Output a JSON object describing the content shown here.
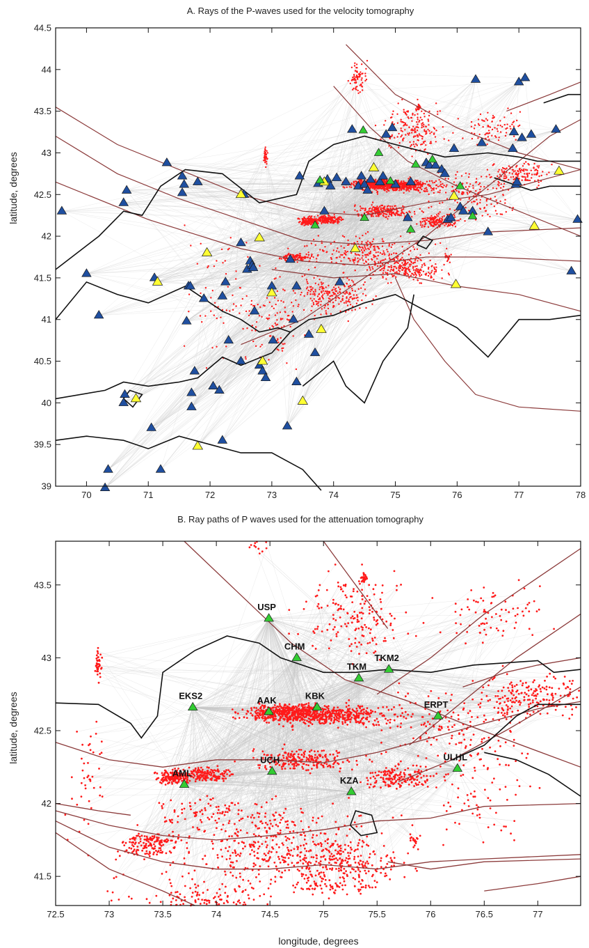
{
  "figure": {
    "panels": [
      {
        "id": "A",
        "title": "A. Rays of the P-waves used for the velocity tomography",
        "xlim": [
          69.5,
          78
        ],
        "ylim": [
          39,
          44.5
        ],
        "x_ticks": [
          "70",
          "71",
          "72",
          "73",
          "74",
          "75",
          "76",
          "77",
          "78"
        ],
        "y_ticks": [
          "39",
          "39.5",
          "40",
          "40.5",
          "41",
          "41.5",
          "42",
          "42.5",
          "43",
          "43.5",
          "44",
          "44.5"
        ],
        "ylabel": "latitude, degrees",
        "stations_blue": [
          [
            69.6,
            42.3
          ],
          [
            70.0,
            41.55
          ],
          [
            70.2,
            41.05
          ],
          [
            70.6,
            42.4
          ],
          [
            70.65,
            42.55
          ],
          [
            70.6,
            40.0
          ],
          [
            70.62,
            40.1
          ],
          [
            71.05,
            39.7
          ],
          [
            71.1,
            41.5
          ],
          [
            71.3,
            42.88
          ],
          [
            71.55,
            42.72
          ],
          [
            71.55,
            42.52
          ],
          [
            71.58,
            42.62
          ],
          [
            71.65,
            41.4
          ],
          [
            71.68,
            41.4
          ],
          [
            71.62,
            40.98
          ],
          [
            71.7,
            40.12
          ],
          [
            71.75,
            40.38
          ],
          [
            71.7,
            39.95
          ],
          [
            71.8,
            42.65
          ],
          [
            71.9,
            41.25
          ],
          [
            72.05,
            40.2
          ],
          [
            72.2,
            39.55
          ],
          [
            72.15,
            40.15
          ],
          [
            72.2,
            41.28
          ],
          [
            72.25,
            41.45
          ],
          [
            72.3,
            40.75
          ],
          [
            72.5,
            41.92
          ],
          [
            72.5,
            40.5
          ],
          [
            72.55,
            42.5
          ],
          [
            72.6,
            41.6
          ],
          [
            72.65,
            41.7
          ],
          [
            72.68,
            41.65
          ],
          [
            72.7,
            41.62
          ],
          [
            72.72,
            41.1
          ],
          [
            72.8,
            40.45
          ],
          [
            72.85,
            40.38
          ],
          [
            72.9,
            40.3
          ],
          [
            73.0,
            41.4
          ],
          [
            73.02,
            40.75
          ],
          [
            73.25,
            39.72
          ],
          [
            73.3,
            41.72
          ],
          [
            73.35,
            41.0
          ],
          [
            73.4,
            40.25
          ],
          [
            73.4,
            41.4
          ],
          [
            73.45,
            42.72
          ],
          [
            73.6,
            40.82
          ],
          [
            73.7,
            40.6
          ],
          [
            73.75,
            42.63
          ],
          [
            73.85,
            42.3
          ],
          [
            73.9,
            42.68
          ],
          [
            73.95,
            42.6
          ],
          [
            74.05,
            42.7
          ],
          [
            74.1,
            41.45
          ],
          [
            74.2,
            42.65
          ],
          [
            74.3,
            43.28
          ],
          [
            74.4,
            42.6
          ],
          [
            74.45,
            42.72
          ],
          [
            74.5,
            42.62
          ],
          [
            74.55,
            42.55
          ],
          [
            74.6,
            42.68
          ],
          [
            74.75,
            42.65
          ],
          [
            74.8,
            42.72
          ],
          [
            74.85,
            43.22
          ],
          [
            74.95,
            43.3
          ],
          [
            75.0,
            42.62
          ],
          [
            75.2,
            42.22
          ],
          [
            75.25,
            42.65
          ],
          [
            75.5,
            42.88
          ],
          [
            75.55,
            42.85
          ],
          [
            75.65,
            42.85
          ],
          [
            75.75,
            42.8
          ],
          [
            75.8,
            42.75
          ],
          [
            75.85,
            42.2
          ],
          [
            75.9,
            42.22
          ],
          [
            75.95,
            43.05
          ],
          [
            76.05,
            42.35
          ],
          [
            76.1,
            42.3
          ],
          [
            76.25,
            42.3
          ],
          [
            76.3,
            43.88
          ],
          [
            76.4,
            43.12
          ],
          [
            76.5,
            42.05
          ],
          [
            76.9,
            43.05
          ],
          [
            76.92,
            43.25
          ],
          [
            76.95,
            42.62
          ],
          [
            76.97,
            42.65
          ],
          [
            77.0,
            43.85
          ],
          [
            77.05,
            43.18
          ],
          [
            77.1,
            43.9
          ],
          [
            77.2,
            43.22
          ],
          [
            77.6,
            43.28
          ],
          [
            77.85,
            41.58
          ],
          [
            77.95,
            42.2
          ],
          [
            70.35,
            39.2
          ],
          [
            70.3,
            38.98
          ],
          [
            71.2,
            39.2
          ]
        ],
        "stations_yellow": [
          [
            70.8,
            40.05
          ],
          [
            71.15,
            41.45
          ],
          [
            71.8,
            39.48
          ],
          [
            71.95,
            41.8
          ],
          [
            72.5,
            42.5
          ],
          [
            72.8,
            41.98
          ],
          [
            72.85,
            40.5
          ],
          [
            73.0,
            41.32
          ],
          [
            73.5,
            40.02
          ],
          [
            73.8,
            40.88
          ],
          [
            73.85,
            42.65
          ],
          [
            74.35,
            41.85
          ],
          [
            74.65,
            42.82
          ],
          [
            75.95,
            42.48
          ],
          [
            75.98,
            41.42
          ],
          [
            77.25,
            42.12
          ],
          [
            77.65,
            42.78
          ]
        ],
        "stations_green": [
          [
            73.7,
            42.13
          ],
          [
            73.78,
            42.67
          ],
          [
            74.48,
            43.27
          ],
          [
            74.5,
            42.22
          ],
          [
            74.73,
            43.0
          ],
          [
            74.92,
            42.66
          ],
          [
            75.25,
            42.08
          ],
          [
            75.33,
            42.86
          ],
          [
            75.6,
            42.92
          ],
          [
            76.05,
            42.6
          ],
          [
            76.25,
            42.24
          ]
        ]
      },
      {
        "id": "B",
        "title": "B. Ray paths of P waves used for the attenuation tomography",
        "xlim": [
          72.5,
          77.4
        ],
        "ylim": [
          41.3,
          43.8
        ],
        "x_ticks": [
          "72.5",
          "73",
          "73.5",
          "74",
          "74.5",
          "75",
          "75.5",
          "76",
          "76.5",
          "77"
        ],
        "y_ticks": [
          "41.5",
          "42",
          "42.5",
          "43",
          "43.5"
        ],
        "xlabel": "longitude, degrees",
        "ylabel": "latitude, degrees",
        "stations": [
          {
            "name": "USP",
            "lon": 74.49,
            "lat": 43.27
          },
          {
            "name": "CHM",
            "lon": 74.75,
            "lat": 43.0
          },
          {
            "name": "TKM",
            "lon": 75.33,
            "lat": 42.86
          },
          {
            "name": "TKM2",
            "lon": 75.61,
            "lat": 42.92
          },
          {
            "name": "EKS2",
            "lon": 73.78,
            "lat": 42.66
          },
          {
            "name": "AAK",
            "lon": 74.49,
            "lat": 42.63
          },
          {
            "name": "KBK",
            "lon": 74.94,
            "lat": 42.66
          },
          {
            "name": "ERPT",
            "lon": 76.07,
            "lat": 42.6
          },
          {
            "name": "UCH",
            "lon": 74.52,
            "lat": 42.22
          },
          {
            "name": "ULHL",
            "lon": 76.25,
            "lat": 42.24
          },
          {
            "name": "AML",
            "lon": 73.7,
            "lat": 42.13
          },
          {
            "name": "KZA",
            "lon": 75.26,
            "lat": 42.08
          }
        ]
      }
    ]
  },
  "colors": {
    "ray": "#c8c8c8",
    "event": "#ff1a1a",
    "fault": "#8b3a3a",
    "border": "#111111",
    "station_blue": "#1f4fa0",
    "station_yellow": "#ffff33",
    "station_green": "#33cc33"
  }
}
